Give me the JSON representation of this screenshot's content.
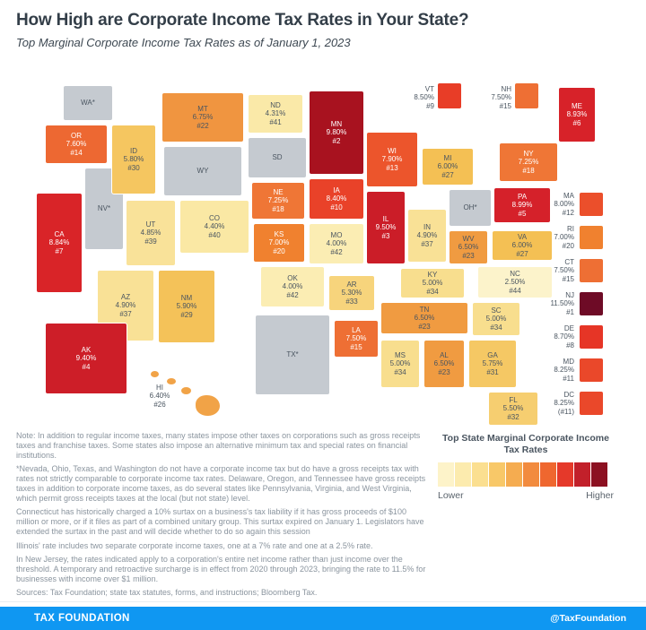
{
  "header": {
    "title": "How High are Corporate Income Tax Rates in Your State?",
    "subtitle": "Top Marginal Corporate Income Tax Rates as of January 1, 2023"
  },
  "chart_data": {
    "type": "choropleth",
    "title": "Top State Marginal Corporate Income Tax Rates",
    "legend": {
      "title": "Top State Marginal Corporate Income Tax Rates",
      "lower": "Lower",
      "higher": "Higher",
      "colors": [
        "#FDF3C9",
        "#FCEBAE",
        "#FBDF90",
        "#F8C868",
        "#F5AC50",
        "#F28B3E",
        "#EF672F",
        "#E5392A",
        "#C2202A",
        "#8C1021"
      ]
    },
    "no_tax_color": "#C5CAD0",
    "states": [
      {
        "abbr": "WA",
        "label": "WA*",
        "rate": null,
        "rank": null,
        "color": "#C5CAD0",
        "text": "dark",
        "placement": "map"
      },
      {
        "abbr": "OR",
        "label": "OR",
        "rate": "7.60%",
        "rank": "#14",
        "color": "#ED6832",
        "text": "light",
        "placement": "map"
      },
      {
        "abbr": "CA",
        "label": "CA",
        "rate": "8.84%",
        "rank": "#7",
        "color": "#D92428",
        "text": "light",
        "placement": "map"
      },
      {
        "abbr": "NV",
        "label": "NV*",
        "rate": null,
        "rank": null,
        "color": "#C5CAD0",
        "text": "dark",
        "placement": "map"
      },
      {
        "abbr": "ID",
        "label": "ID",
        "rate": "5.80%",
        "rank": "#30",
        "color": "#F5C660",
        "text": "dark",
        "placement": "map"
      },
      {
        "abbr": "MT",
        "label": "MT",
        "rate": "6.75%",
        "rank": "#22",
        "color": "#F09540",
        "text": "dark",
        "placement": "map"
      },
      {
        "abbr": "WY",
        "label": "WY",
        "rate": null,
        "rank": null,
        "color": "#C5CAD0",
        "text": "dark",
        "placement": "map"
      },
      {
        "abbr": "UT",
        "label": "UT",
        "rate": "4.85%",
        "rank": "#39",
        "color": "#F9E299",
        "text": "dark",
        "placement": "map"
      },
      {
        "abbr": "CO",
        "label": "CO",
        "rate": "4.40%",
        "rank": "#40",
        "color": "#FAE8A4",
        "text": "dark",
        "placement": "map"
      },
      {
        "abbr": "AZ",
        "label": "AZ",
        "rate": "4.90%",
        "rank": "#37",
        "color": "#F9E196",
        "text": "dark",
        "placement": "map"
      },
      {
        "abbr": "NM",
        "label": "NM",
        "rate": "5.90%",
        "rank": "#29",
        "color": "#F4C259",
        "text": "dark",
        "placement": "map"
      },
      {
        "abbr": "ND",
        "label": "ND",
        "rate": "4.31%",
        "rank": "#41",
        "color": "#FAE9A8",
        "text": "dark",
        "placement": "map"
      },
      {
        "abbr": "SD",
        "label": "SD",
        "rate": null,
        "rank": null,
        "color": "#C5CAD0",
        "text": "dark",
        "placement": "map"
      },
      {
        "abbr": "NE",
        "label": "NE",
        "rate": "7.25%",
        "rank": "#18",
        "color": "#EF7636",
        "text": "light",
        "placement": "map"
      },
      {
        "abbr": "KS",
        "label": "KS",
        "rate": "7.00%",
        "rank": "#20",
        "color": "#F0812F",
        "text": "light",
        "placement": "map"
      },
      {
        "abbr": "OK",
        "label": "OK",
        "rate": "4.00%",
        "rank": "#42",
        "color": "#FBEDB3",
        "text": "dark",
        "placement": "map"
      },
      {
        "abbr": "TX",
        "label": "TX*",
        "rate": null,
        "rank": null,
        "color": "#C5CAD0",
        "text": "dark",
        "placement": "map"
      },
      {
        "abbr": "MN",
        "label": "MN",
        "rate": "9.80%",
        "rank": "#2",
        "color": "#A8121F",
        "text": "light",
        "placement": "map"
      },
      {
        "abbr": "IA",
        "label": "IA",
        "rate": "8.40%",
        "rank": "#10",
        "color": "#E94229",
        "text": "light",
        "placement": "map"
      },
      {
        "abbr": "MO",
        "label": "MO",
        "rate": "4.00%",
        "rank": "#42",
        "color": "#FBEDB3",
        "text": "dark",
        "placement": "map"
      },
      {
        "abbr": "AR",
        "label": "AR",
        "rate": "5.30%",
        "rank": "#33",
        "color": "#F7D47C",
        "text": "dark",
        "placement": "map"
      },
      {
        "abbr": "LA",
        "label": "LA",
        "rate": "7.50%",
        "rank": "#15",
        "color": "#EE6F34",
        "text": "light",
        "placement": "map"
      },
      {
        "abbr": "WI",
        "label": "WI",
        "rate": "7.90%",
        "rank": "#13",
        "color": "#EC552C",
        "text": "light",
        "placement": "map"
      },
      {
        "abbr": "IL",
        "label": "IL",
        "rate": "9.50%",
        "rank": "#3",
        "color": "#CB1D28",
        "text": "light",
        "placement": "map"
      },
      {
        "abbr": "MI",
        "label": "MI",
        "rate": "6.00%",
        "rank": "#27",
        "color": "#F4C054",
        "text": "dark",
        "placement": "map"
      },
      {
        "abbr": "IN",
        "label": "IN",
        "rate": "4.90%",
        "rank": "#37",
        "color": "#F9E196",
        "text": "dark",
        "placement": "map"
      },
      {
        "abbr": "OH",
        "label": "OH*",
        "rate": null,
        "rank": null,
        "color": "#C5CAD0",
        "text": "dark",
        "placement": "map"
      },
      {
        "abbr": "KY",
        "label": "KY",
        "rate": "5.00%",
        "rank": "#34",
        "color": "#F8DE8E",
        "text": "dark",
        "placement": "map"
      },
      {
        "abbr": "WV",
        "label": "WV",
        "rate": "6.50%",
        "rank": "#23",
        "color": "#F09B41",
        "text": "dark",
        "placement": "map"
      },
      {
        "abbr": "VA",
        "label": "VA",
        "rate": "6.00%",
        "rank": "#27",
        "color": "#F4C054",
        "text": "dark",
        "placement": "map"
      },
      {
        "abbr": "NC",
        "label": "NC",
        "rate": "2.50%",
        "rank": "#44",
        "color": "#FCF3CB",
        "text": "dark",
        "placement": "map"
      },
      {
        "abbr": "TN",
        "label": "TN",
        "rate": "6.50%",
        "rank": "#23",
        "color": "#F09B41",
        "text": "dark",
        "placement": "map"
      },
      {
        "abbr": "SC",
        "label": "SC",
        "rate": "5.00%",
        "rank": "#34",
        "color": "#F8DE8E",
        "text": "dark",
        "placement": "map"
      },
      {
        "abbr": "MS",
        "label": "MS",
        "rate": "5.00%",
        "rank": "#34",
        "color": "#F8DE8E",
        "text": "dark",
        "placement": "map"
      },
      {
        "abbr": "AL",
        "label": "AL",
        "rate": "6.50%",
        "rank": "#23",
        "color": "#F09B41",
        "text": "dark",
        "placement": "map"
      },
      {
        "abbr": "GA",
        "label": "GA",
        "rate": "5.75%",
        "rank": "#31",
        "color": "#F5C864",
        "text": "dark",
        "placement": "map"
      },
      {
        "abbr": "FL",
        "label": "FL",
        "rate": "5.50%",
        "rank": "#32",
        "color": "#F6CE70",
        "text": "dark",
        "placement": "map"
      },
      {
        "abbr": "NY",
        "label": "NY",
        "rate": "7.25%",
        "rank": "#18",
        "color": "#EF7636",
        "text": "light",
        "placement": "map"
      },
      {
        "abbr": "PA",
        "label": "PA",
        "rate": "8.99%",
        "rank": "#5",
        "color": "#D5212A",
        "text": "light",
        "placement": "map"
      },
      {
        "abbr": "ME",
        "label": "ME",
        "rate": "8.93%",
        "rank": "#6",
        "color": "#D72229",
        "text": "light",
        "placement": "map"
      },
      {
        "abbr": "AK",
        "label": "AK",
        "rate": "9.40%",
        "rank": "#4",
        "color": "#CD1E28",
        "text": "light",
        "placement": "map"
      },
      {
        "abbr": "HI",
        "label": "HI",
        "rate": "6.40%",
        "rank": "#26",
        "color": "#F1A347",
        "text": "dark",
        "placement": "islands"
      },
      {
        "abbr": "VT",
        "label": "VT",
        "rate": "8.50%",
        "rank": "#9",
        "color": "#E83D27",
        "text": "dark",
        "placement": "callout-top"
      },
      {
        "abbr": "NH",
        "label": "NH",
        "rate": "7.50%",
        "rank": "#15",
        "color": "#EE6F34",
        "text": "dark",
        "placement": "callout-top"
      },
      {
        "abbr": "MA",
        "label": "MA",
        "rate": "8.00%",
        "rank": "#12",
        "color": "#EB4F2B",
        "text": "dark",
        "placement": "callout-right"
      },
      {
        "abbr": "RI",
        "label": "RI",
        "rate": "7.00%",
        "rank": "#20",
        "color": "#F0812F",
        "text": "dark",
        "placement": "callout-right"
      },
      {
        "abbr": "CT",
        "label": "CT",
        "rate": "7.50%",
        "rank": "#15",
        "color": "#EE6F34",
        "text": "dark",
        "placement": "callout-right"
      },
      {
        "abbr": "NJ",
        "label": "NJ",
        "rate": "11.50%",
        "rank": "#1",
        "color": "#6E0B26",
        "text": "dark",
        "placement": "callout-right"
      },
      {
        "abbr": "DE",
        "label": "DE",
        "rate": "8.70%",
        "rank": "#8",
        "color": "#E63526",
        "text": "dark",
        "placement": "callout-right"
      },
      {
        "abbr": "MD",
        "label": "MD",
        "rate": "8.25%",
        "rank": "#11",
        "color": "#EA482A",
        "text": "dark",
        "placement": "callout-right"
      },
      {
        "abbr": "DC",
        "label": "DC",
        "rate": "8.25%",
        "rank": "(#11)",
        "color": "#EA482A",
        "text": "dark",
        "placement": "callout-right"
      }
    ]
  },
  "notes": [
    "Note: In addition to regular income taxes, many states impose other taxes on corporations such as gross receipts taxes and franchise taxes. Some states also impose an alternative minimum tax and special rates on financial institutions.",
    "*Nevada, Ohio, Texas, and Washington do not have a corporate income tax but do have a gross receipts tax with rates not strictly comparable to corporate income tax rates. Delaware, Oregon, and Tennessee have gross receipts taxes in addition to corporate income taxes, as do several states like Pennsylvania, Virginia, and West Virginia, which permit gross receipts taxes at the local (but not state) level.",
    "Connecticut has historically charged a 10% surtax on a business's tax liability if it has gross proceeds of $100 million or more, or if it files as part of a combined unitary group. This surtax expired on January 1. Legislators have extended the surtax in the past and will decide whether to do so again this session",
    "Illinois' rate includes two separate corporate income taxes, one at a 7% rate and one at a 2.5% rate.",
    "In New Jersey, the rates indicated apply to a corporation's entire net income rather than just income over the threshold. A temporary and retroactive surcharge is in effect from 2020 through 2023, bringing the rate to 11.5% for businesses with income over $1 million.",
    "Sources: Tax Foundation; state tax statutes, forms, and instructions; Bloomberg Tax."
  ],
  "footer": {
    "left": "TAX FOUNDATION",
    "right": "@TaxFoundation",
    "color": "#0F97F2"
  }
}
